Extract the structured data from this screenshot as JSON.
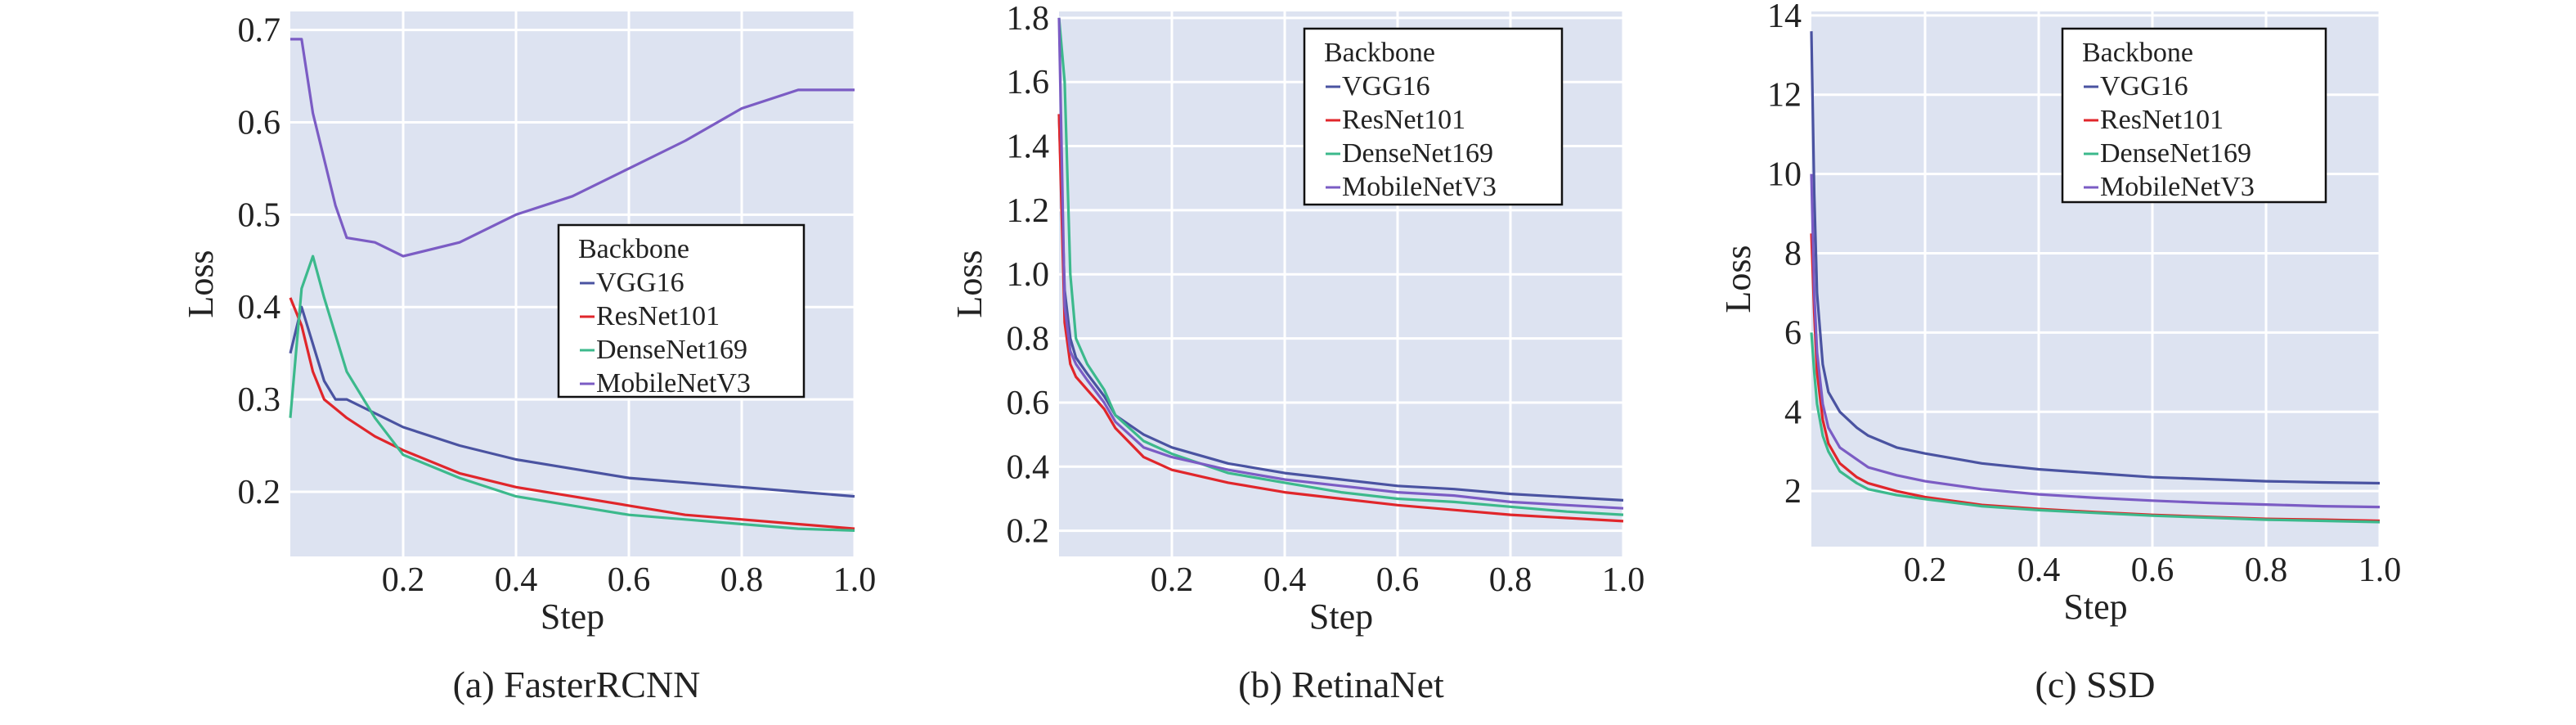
{
  "figure": {
    "panel_background": "#dde3f1",
    "grid_color": "#ffffff"
  },
  "chart_data": [
    {
      "type": "line",
      "caption": "(a) FasterRCNN",
      "xlabel": "Step",
      "ylabel": "Loss",
      "xlim": [
        0,
        1.0
      ],
      "ylim": [
        0.13,
        0.72
      ],
      "xticks": [
        "0.2",
        "0.4",
        "0.6",
        "0.8",
        "1.0"
      ],
      "yticks": [
        "0.2",
        "0.3",
        "0.4",
        "0.5",
        "0.6",
        "0.7"
      ],
      "grid": true,
      "legend": {
        "title": "Backbone",
        "placement": "center-right"
      },
      "x": [
        0.0,
        0.02,
        0.04,
        0.06,
        0.08,
        0.1,
        0.15,
        0.2,
        0.3,
        0.4,
        0.5,
        0.6,
        0.7,
        0.8,
        0.9,
        1.0
      ],
      "series": [
        {
          "name": "VGG16",
          "color": "#4a53a1",
          "values": [
            0.35,
            0.4,
            0.36,
            0.32,
            0.3,
            0.3,
            0.285,
            0.27,
            0.25,
            0.235,
            0.225,
            0.215,
            0.21,
            0.205,
            0.2,
            0.195
          ]
        },
        {
          "name": "ResNet101",
          "color": "#e0262b",
          "values": [
            0.41,
            0.38,
            0.33,
            0.3,
            0.29,
            0.28,
            0.26,
            0.245,
            0.22,
            0.205,
            0.195,
            0.185,
            0.175,
            0.17,
            0.165,
            0.16
          ]
        },
        {
          "name": "DenseNet169",
          "color": "#3cb98c",
          "values": [
            0.28,
            0.42,
            0.455,
            0.41,
            0.37,
            0.33,
            0.28,
            0.24,
            0.215,
            0.195,
            0.185,
            0.175,
            0.17,
            0.165,
            0.16,
            0.158
          ]
        },
        {
          "name": "MobileNetV3",
          "color": "#7b5cc4",
          "values": [
            0.69,
            0.69,
            0.61,
            0.56,
            0.51,
            0.475,
            0.47,
            0.455,
            0.47,
            0.5,
            0.52,
            0.55,
            0.58,
            0.615,
            0.635,
            0.635
          ]
        }
      ]
    },
    {
      "type": "line",
      "caption": "(b) RetinaNet",
      "xlabel": "Step",
      "ylabel": "Loss",
      "xlim": [
        0,
        1.0
      ],
      "ylim": [
        0.12,
        1.82
      ],
      "xticks": [
        "0.2",
        "0.4",
        "0.6",
        "0.8",
        "1.0"
      ],
      "yticks": [
        "0.2",
        "0.4",
        "0.6",
        "0.8",
        "1.0",
        "1.2",
        "1.4",
        "1.6",
        "1.8"
      ],
      "grid": true,
      "legend": {
        "title": "Backbone",
        "placement": "top-right"
      },
      "x": [
        0.0,
        0.01,
        0.02,
        0.03,
        0.05,
        0.08,
        0.1,
        0.15,
        0.2,
        0.3,
        0.4,
        0.5,
        0.6,
        0.7,
        0.8,
        0.9,
        1.0
      ],
      "series": [
        {
          "name": "VGG16",
          "color": "#4a53a1",
          "values": [
            1.5,
            0.95,
            0.8,
            0.74,
            0.69,
            0.62,
            0.56,
            0.5,
            0.46,
            0.41,
            0.38,
            0.36,
            0.34,
            0.33,
            0.315,
            0.305,
            0.295
          ]
        },
        {
          "name": "ResNet101",
          "color": "#e0262b",
          "values": [
            1.5,
            0.85,
            0.72,
            0.68,
            0.64,
            0.58,
            0.52,
            0.43,
            0.39,
            0.35,
            0.32,
            0.3,
            0.28,
            0.265,
            0.25,
            0.24,
            0.23
          ]
        },
        {
          "name": "DenseNet169",
          "color": "#3cb98c",
          "values": [
            1.8,
            1.6,
            1.0,
            0.8,
            0.72,
            0.64,
            0.56,
            0.48,
            0.44,
            0.38,
            0.35,
            0.32,
            0.3,
            0.29,
            0.275,
            0.26,
            0.25
          ]
        },
        {
          "name": "MobileNetV3",
          "color": "#7b5cc4",
          "values": [
            1.8,
            0.9,
            0.76,
            0.72,
            0.67,
            0.6,
            0.54,
            0.46,
            0.43,
            0.39,
            0.36,
            0.34,
            0.32,
            0.31,
            0.29,
            0.28,
            0.27
          ]
        }
      ]
    },
    {
      "type": "line",
      "caption": "(c) SSD",
      "xlabel": "Step",
      "ylabel": "Loss",
      "xlim": [
        0,
        1.0
      ],
      "ylim": [
        0.6,
        14.1
      ],
      "xticks": [
        "0.2",
        "0.4",
        "0.6",
        "0.8",
        "1.0"
      ],
      "yticks": [
        "2",
        "4",
        "6",
        "8",
        "10",
        "12",
        "14"
      ],
      "grid": true,
      "legend": {
        "title": "Backbone",
        "placement": "top-right"
      },
      "x": [
        0.0,
        0.005,
        0.01,
        0.02,
        0.03,
        0.05,
        0.08,
        0.1,
        0.15,
        0.2,
        0.3,
        0.4,
        0.5,
        0.6,
        0.7,
        0.8,
        0.9,
        1.0
      ],
      "series": [
        {
          "name": "VGG16",
          "color": "#4a53a1",
          "values": [
            13.6,
            9.5,
            7.0,
            5.2,
            4.5,
            4.0,
            3.6,
            3.4,
            3.1,
            2.95,
            2.7,
            2.55,
            2.45,
            2.35,
            2.3,
            2.25,
            2.22,
            2.2
          ]
        },
        {
          "name": "ResNet101",
          "color": "#e0262b",
          "values": [
            8.5,
            6.5,
            5.0,
            3.8,
            3.2,
            2.7,
            2.35,
            2.2,
            2.0,
            1.85,
            1.65,
            1.55,
            1.47,
            1.4,
            1.35,
            1.3,
            1.28,
            1.25
          ]
        },
        {
          "name": "DenseNet169",
          "color": "#3cb98c",
          "values": [
            6.0,
            5.0,
            4.2,
            3.4,
            3.0,
            2.5,
            2.2,
            2.05,
            1.9,
            1.8,
            1.62,
            1.52,
            1.45,
            1.38,
            1.33,
            1.28,
            1.25,
            1.22
          ]
        },
        {
          "name": "MobileNetV3",
          "color": "#7b5cc4",
          "values": [
            10.0,
            7.0,
            5.5,
            4.2,
            3.6,
            3.1,
            2.8,
            2.6,
            2.4,
            2.25,
            2.05,
            1.92,
            1.83,
            1.76,
            1.7,
            1.66,
            1.62,
            1.6
          ]
        }
      ]
    }
  ]
}
